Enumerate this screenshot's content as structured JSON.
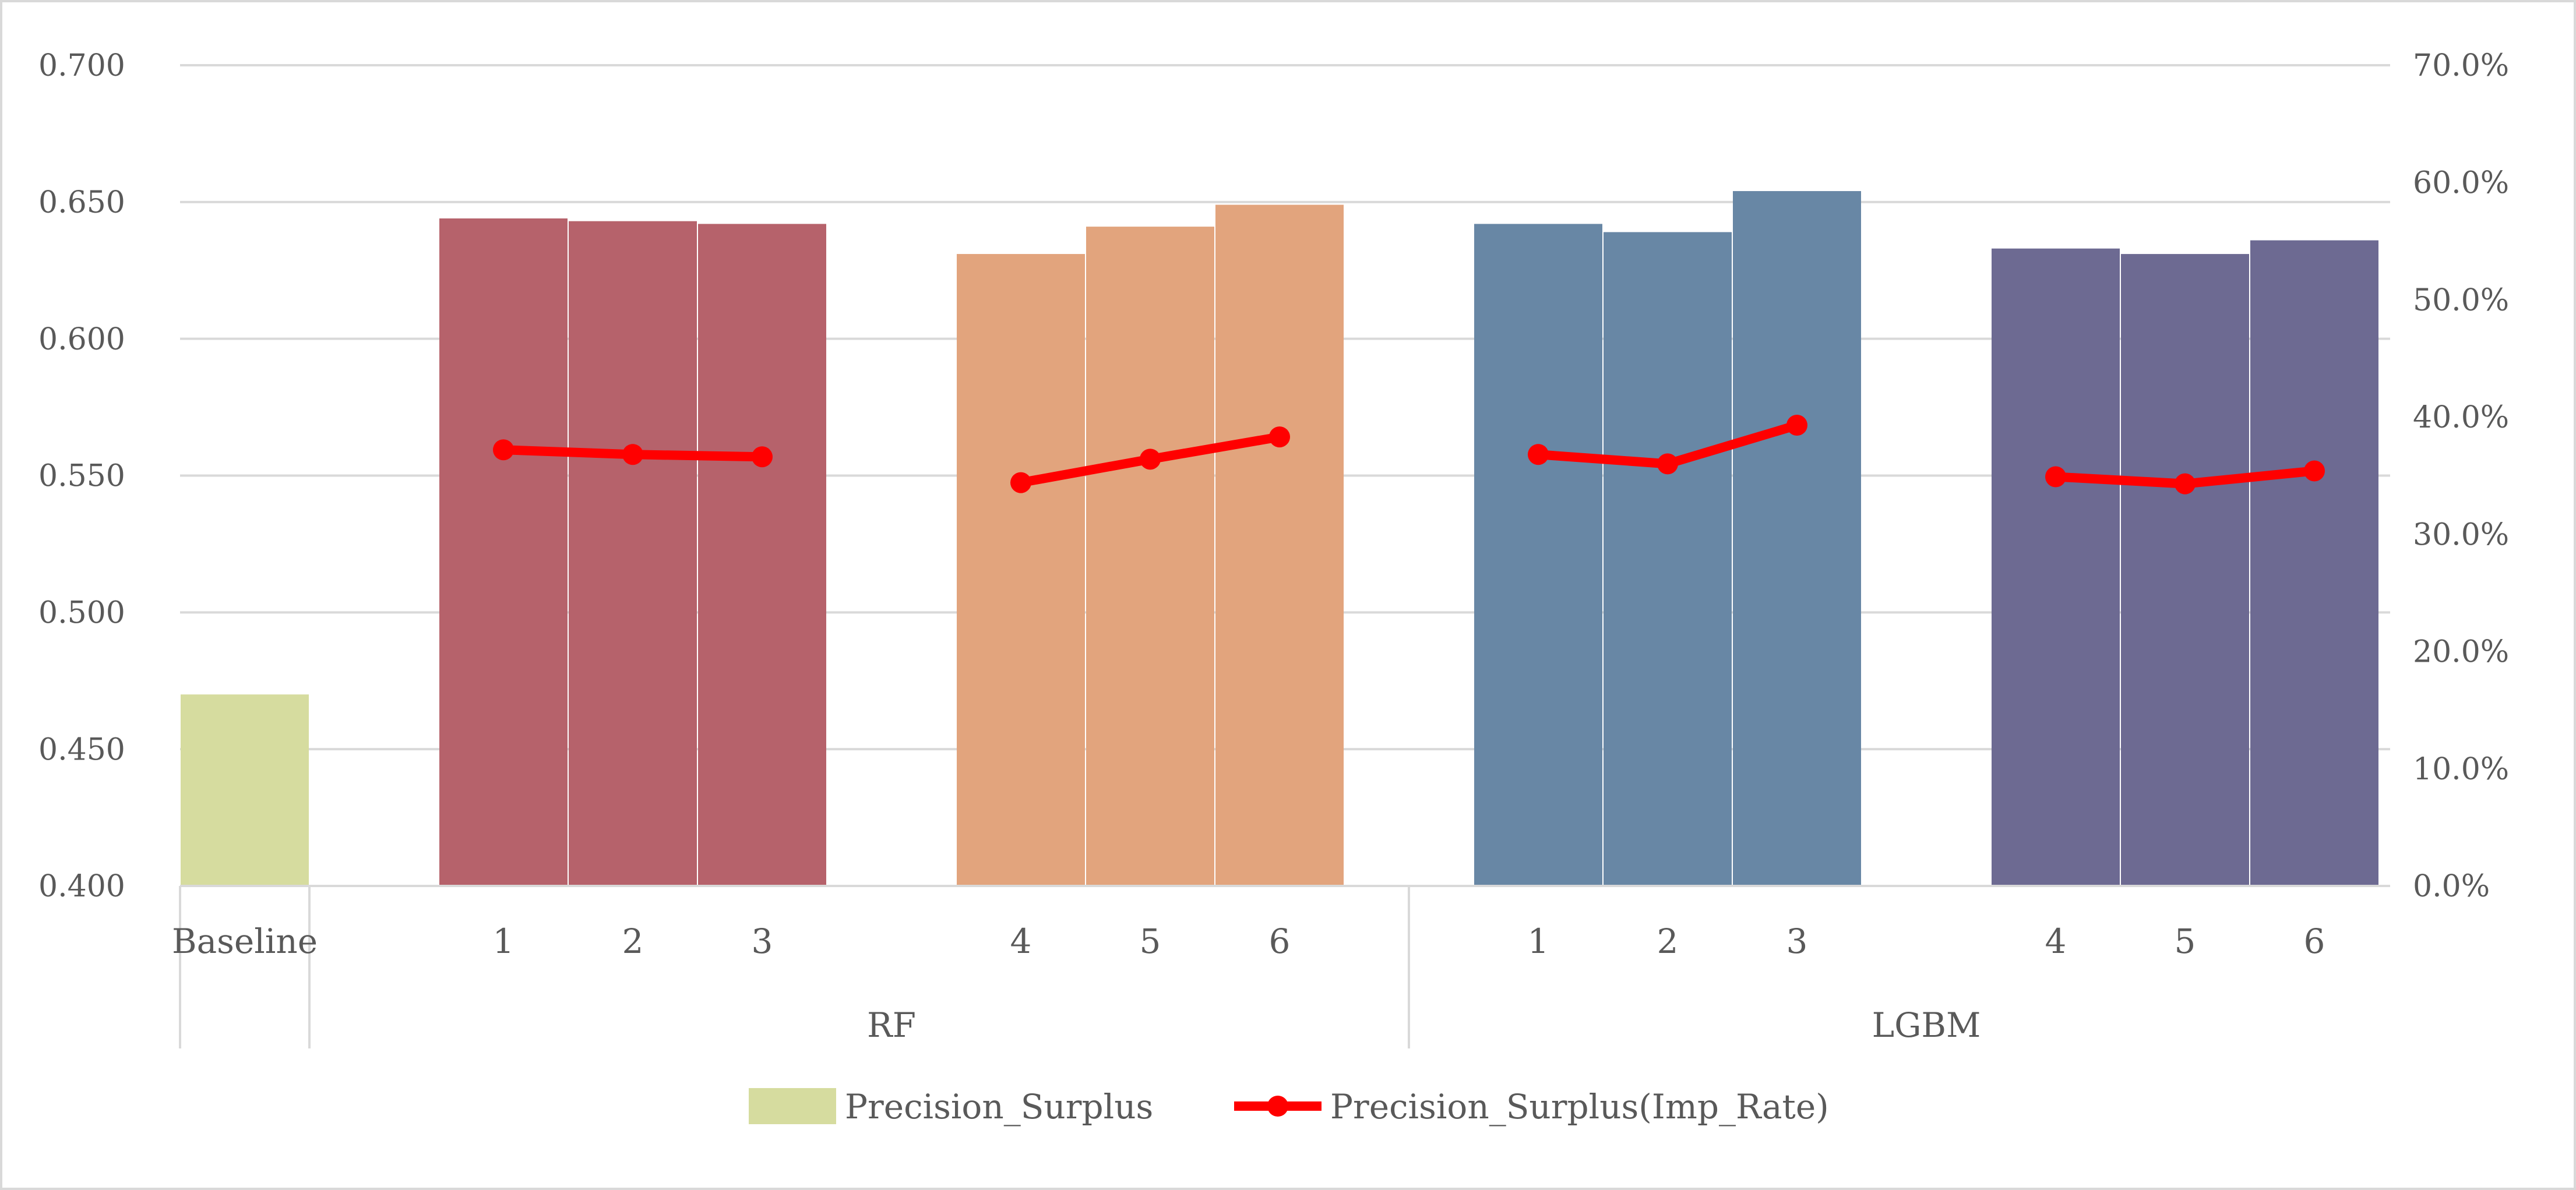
{
  "chart_data": {
    "type": "bar",
    "categories": [
      "Baseline",
      "1",
      "2",
      "3",
      "4",
      "5",
      "6",
      "1",
      "2",
      "3",
      "4",
      "5",
      "6"
    ],
    "groups": [
      {
        "label": "",
        "start": 0,
        "end": 0
      },
      {
        "label": "RF",
        "start": 1,
        "end": 6
      },
      {
        "label": "LGBM",
        "start": 7,
        "end": 12
      }
    ],
    "series": [
      {
        "name": "Precision_Surplus",
        "type": "bar",
        "axis": "left",
        "values": [
          0.47,
          0.644,
          0.643,
          0.642,
          0.631,
          0.641,
          0.649,
          0.642,
          0.639,
          0.654,
          0.633,
          0.631,
          0.636
        ],
        "colors": [
          "#d6dc9f",
          "#b6626b",
          "#b6626b",
          "#b6626b",
          "#e2a47d",
          "#e2a47d",
          "#e2a47d",
          "#6887a5",
          "#6887a5",
          "#6887a5",
          "#6d6a92",
          "#6d6a92",
          "#6d6a92"
        ]
      },
      {
        "name": "Precision_Surplus(Imp_Rate)",
        "type": "line",
        "axis": "right",
        "color": "#ff0000",
        "segments": [
          [
            1,
            3
          ],
          [
            4,
            6
          ],
          [
            7,
            9
          ],
          [
            10,
            12
          ]
        ],
        "values": [
          null,
          37.2,
          36.8,
          36.6,
          34.4,
          36.4,
          38.3,
          36.8,
          36.0,
          39.3,
          34.9,
          34.3,
          35.4
        ]
      }
    ],
    "y_left": {
      "lim": [
        0.4,
        0.7
      ],
      "ticks": [
        "0.400",
        "0.450",
        "0.500",
        "0.550",
        "0.600",
        "0.650",
        "0.700"
      ]
    },
    "y_right": {
      "lim": [
        0,
        70
      ],
      "ticks": [
        "0.0%",
        "10.0%",
        "20.0%",
        "30.0%",
        "40.0%",
        "50.0%",
        "60.0%",
        "70.0%"
      ]
    },
    "grid": true,
    "legend_position": "bottom",
    "title": "",
    "xlabel": "",
    "ylabel": ""
  }
}
